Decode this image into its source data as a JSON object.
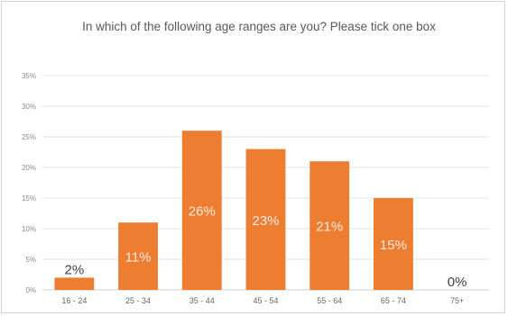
{
  "chart_data": {
    "type": "bar",
    "title": "In which of the following age ranges are you?  Please tick one box",
    "categories": [
      "16 - 24",
      "25 - 34",
      "35 - 44",
      "45 - 54",
      "55 - 64",
      "65 - 74",
      "75+"
    ],
    "values": [
      2,
      11,
      26,
      23,
      21,
      15,
      0
    ],
    "data_labels": [
      "2%",
      "11%",
      "26%",
      "23%",
      "21%",
      "15%",
      "0%"
    ],
    "yticks": [
      "0%",
      "5%",
      "10%",
      "15%",
      "20%",
      "25%",
      "30%",
      "35%"
    ],
    "ylim": [
      0,
      35
    ],
    "grid": true,
    "legend": "none",
    "bar_color": "#ed7d31",
    "grid_color": "#e3e3e3"
  }
}
